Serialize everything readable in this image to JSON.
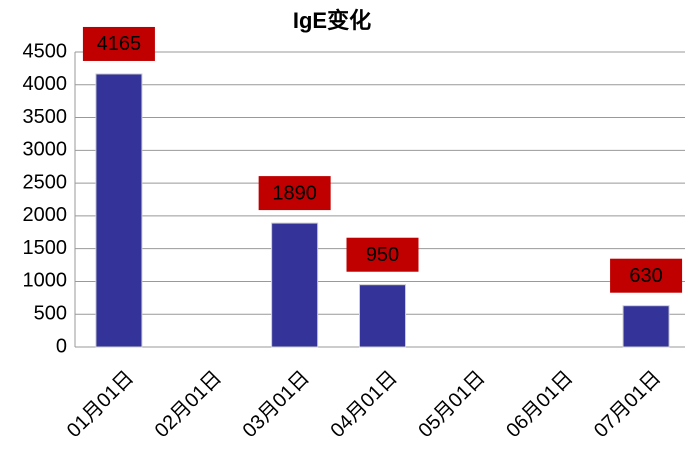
{
  "chart_data": {
    "type": "bar",
    "title": "IgE变化",
    "categories": [
      "01月01日",
      "02月01日",
      "03月01日",
      "04月01日",
      "05月01日",
      "06月01日",
      "07月01日"
    ],
    "values": [
      4165,
      null,
      1890,
      950,
      null,
      null,
      630
    ],
    "color": "#333399",
    "label_color": "#c00000",
    "ylim": [
      0,
      4500
    ],
    "yticks": [
      0,
      500,
      1000,
      1500,
      2000,
      2500,
      3000,
      3500,
      4000,
      4500
    ],
    "grid": true
  }
}
